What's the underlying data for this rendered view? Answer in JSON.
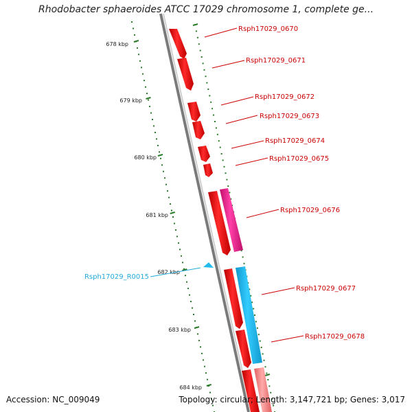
{
  "title": "Rhodobacter sphaeroides ATCC 17029 chromosome 1, complete ge...",
  "footer": {
    "accession": "Accession: NC_009049",
    "summary": "Topology: circular; Length: 3,147,721 bp; Genes: 3,017"
  },
  "colors": {
    "cds": "#ee1111",
    "cds_alt_magenta": "#ee1188",
    "rrna_cyan": "#22bbee",
    "cds_pink": "#f08080",
    "label_red": "#cc0000",
    "label_cyan": "#22aadd",
    "tick_green": "#2a7a2a",
    "backbone": "#7a7a7a"
  },
  "ruler": {
    "unit": "kbp",
    "ticks": [
      "678 kbp",
      "679 kbp",
      "680 kbp",
      "681 kbp",
      "682 kbp",
      "683 kbp",
      "684 kbp"
    ]
  },
  "features": [
    {
      "name": "Rsph17029_0670",
      "type": "CDS",
      "color": "cds"
    },
    {
      "name": "Rsph17029_0671",
      "type": "CDS",
      "color": "cds"
    },
    {
      "name": "Rsph17029_0672",
      "type": "CDS",
      "color": "cds"
    },
    {
      "name": "Rsph17029_0673",
      "type": "CDS",
      "color": "cds"
    },
    {
      "name": "Rsph17029_0674",
      "type": "CDS",
      "color": "cds"
    },
    {
      "name": "Rsph17029_0675",
      "type": "CDS",
      "color": "cds"
    },
    {
      "name": "Rsph17029_0676",
      "type": "CDS",
      "color": "cds_alt_magenta"
    },
    {
      "name": "Rsph17029_R0015",
      "type": "tRNA",
      "color": "rrna_cyan"
    },
    {
      "name": "Rsph17029_0677",
      "type": "CDS",
      "color": "rrna_cyan"
    },
    {
      "name": "Rsph17029_0678",
      "type": "CDS",
      "color": "cds"
    }
  ]
}
